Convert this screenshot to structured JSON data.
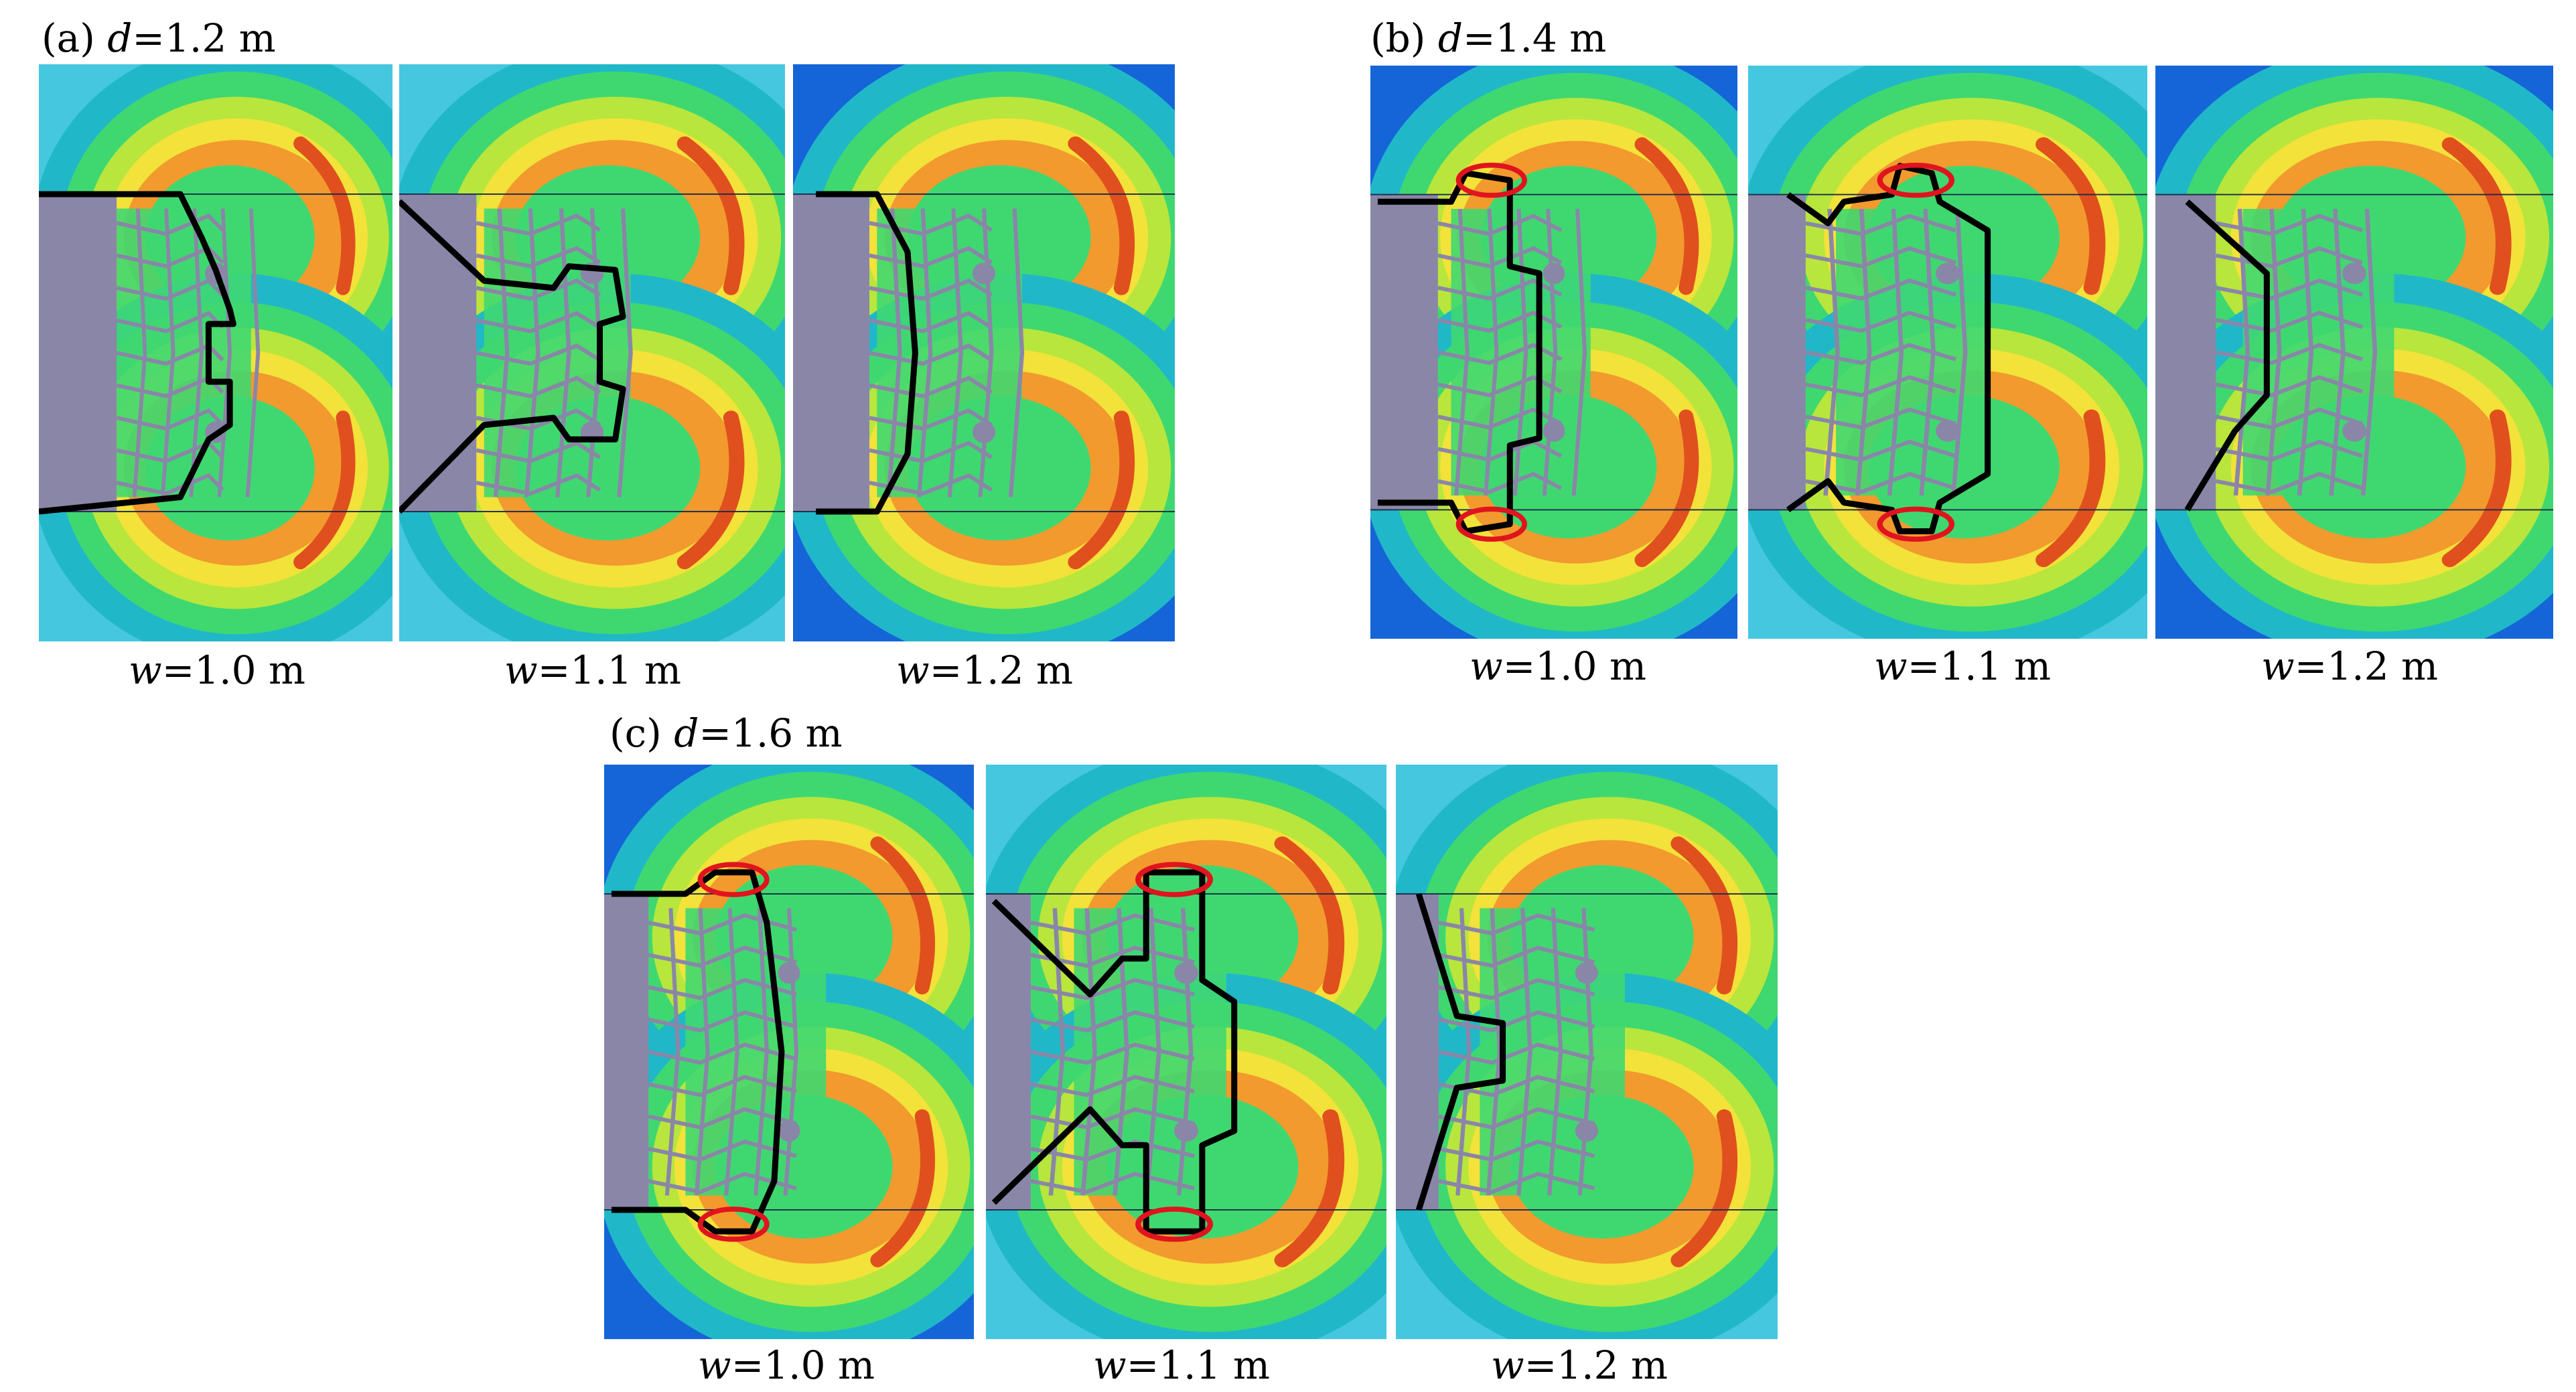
{
  "groups": [
    {
      "id": "a",
      "title_prefix": "(a) ",
      "title_var": "d",
      "title_value": "=1.2 m",
      "captions": [
        {
          "var": "w",
          "value": "=1.0 m"
        },
        {
          "var": "w",
          "value": "=1.1 m"
        },
        {
          "var": "w",
          "value": "=1.2 m"
        }
      ]
    },
    {
      "id": "b",
      "title_prefix": "(b) ",
      "title_var": "d",
      "title_value": "=1.4 m",
      "captions": [
        {
          "var": "w",
          "value": "=1.0 m"
        },
        {
          "var": "w",
          "value": "=1.1 m"
        },
        {
          "var": "w",
          "value": "=1.2 m"
        }
      ]
    },
    {
      "id": "c",
      "title_prefix": "(c) ",
      "title_var": "d",
      "title_value": "=1.6 m",
      "captions": [
        {
          "var": "w",
          "value": "=1.0 m"
        },
        {
          "var": "w",
          "value": "=1.1 m"
        },
        {
          "var": "w",
          "value": "=1.2 m"
        }
      ]
    }
  ],
  "colors": {
    "outer_blue": "#1565d8",
    "light_cyan": "#45c7e0",
    "cyan": "#20b8c8",
    "green": "#3fd870",
    "yellow_green": "#b8e63c",
    "yellow": "#f2e23a",
    "orange": "#f29a2e",
    "red_orange": "#e0501e",
    "crack_gray": "#8a86a8",
    "dark_blue": "#0a2fc0",
    "outline": "#000000",
    "highlight_ellipse": "#e0141e"
  }
}
